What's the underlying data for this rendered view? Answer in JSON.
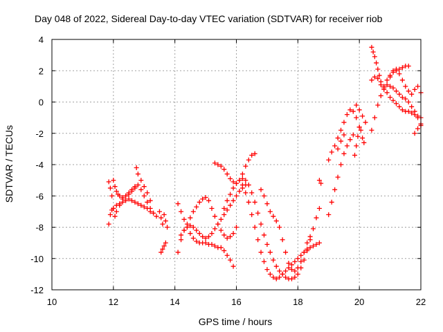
{
  "chart_data": {
    "type": "scatter",
    "title": "Day 048 of 2022, Sidereal Day-to-day VTEC variation (SDTVAR) for receiver riob",
    "xlabel": "GPS time / hours",
    "ylabel": "SDTVAR / TECUs",
    "xlim": [
      10,
      22
    ],
    "ylim": [
      -12,
      4
    ],
    "x_ticks": [
      "10",
      "12",
      "14",
      "16",
      "18",
      "20",
      "22"
    ],
    "y_ticks": [
      "4",
      "2",
      "0",
      "-2",
      "-4",
      "-6",
      "-8",
      "-10",
      "-12"
    ],
    "grid": true,
    "marker": "plus",
    "color": "#ff0000",
    "series": [
      {
        "x": [
          11.85,
          11.9,
          11.95,
          12.0,
          12.1,
          12.2,
          12.3,
          12.4,
          12.5,
          12.6,
          12.7,
          12.8,
          12.9,
          13.0,
          13.1,
          13.2,
          13.3,
          13.4
        ],
        "y": [
          -7.8,
          -7.2,
          -6.9,
          -6.8,
          -6.6,
          -6.5,
          -6.4,
          -6.3,
          -6.2,
          -6.3,
          -6.4,
          -6.5,
          -6.6,
          -6.7,
          -6.8,
          -7.0,
          -7.1,
          -7.3
        ]
      },
      {
        "x": [
          11.85,
          11.9,
          11.95,
          12.0,
          12.05,
          12.1,
          12.2,
          12.3,
          12.4,
          12.5,
          12.6,
          12.7,
          12.8,
          12.9,
          13.0,
          13.1,
          13.2,
          13.3
        ],
        "y": [
          -5.1,
          -5.5,
          -6.0,
          -6.8,
          -7.3,
          -7.0,
          -6.6,
          -6.2,
          -6.0,
          -5.8,
          -5.6,
          -5.4,
          -5.3,
          -5.6,
          -6.0,
          -6.4,
          -6.8,
          -7.1
        ]
      },
      {
        "x": [
          12.0,
          12.05,
          12.1,
          12.15,
          12.2,
          12.3,
          12.4,
          12.5,
          12.6,
          12.7,
          12.75,
          12.8,
          12.9,
          13.0,
          13.1,
          13.2
        ],
        "y": [
          -5.0,
          -5.4,
          -5.7,
          -5.9,
          -6.0,
          -6.1,
          -6.0,
          -5.9,
          -5.7,
          -5.5,
          -4.2,
          -4.6,
          -5.0,
          -5.4,
          -5.8,
          -6.3
        ]
      },
      {
        "x": [
          13.5,
          13.55,
          13.6,
          13.65,
          13.7,
          13.75
        ],
        "y": [
          -7.0,
          -7.4,
          -7.8,
          -7.2,
          -7.6,
          -8.0
        ]
      },
      {
        "x": [
          13.55,
          13.6,
          13.65,
          13.7
        ],
        "y": [
          -9.6,
          -9.4,
          -9.2,
          -9.0
        ]
      },
      {
        "x": [
          14.1,
          14.2,
          14.3,
          14.4,
          14.5,
          14.6,
          14.7,
          14.8,
          14.9,
          15.0,
          15.1,
          15.2,
          15.3,
          15.4,
          15.5,
          15.6,
          15.7,
          15.8,
          15.9
        ],
        "y": [
          -6.5,
          -7.0,
          -7.5,
          -8.0,
          -8.4,
          -8.7,
          -8.9,
          -9.0,
          -9.0,
          -9.0,
          -9.1,
          -9.1,
          -9.2,
          -9.3,
          -9.3,
          -9.5,
          -9.8,
          -10.1,
          -10.5
        ]
      },
      {
        "x": [
          14.1,
          14.2,
          14.3,
          14.4,
          14.5,
          14.6,
          14.7,
          14.8,
          14.9,
          15.0,
          15.1,
          15.2,
          15.3,
          15.4,
          15.5,
          15.6,
          15.7,
          15.8,
          15.9,
          16.0
        ],
        "y": [
          -9.6,
          -8.8,
          -8.2,
          -7.8,
          -7.4,
          -7.0,
          -6.7,
          -6.4,
          -6.2,
          -6.1,
          -6.3,
          -6.8,
          -7.3,
          -7.8,
          -8.2,
          -8.5,
          -8.7,
          -8.6,
          -8.4,
          -8.0
        ]
      },
      {
        "x": [
          14.2,
          14.3,
          14.4,
          14.5,
          14.6,
          14.7,
          14.8,
          14.9,
          15.0,
          15.1,
          15.2,
          15.3,
          15.4,
          15.5,
          15.6,
          15.7,
          15.8,
          15.9,
          16.0,
          16.1,
          16.2,
          16.3
        ],
        "y": [
          -8.5,
          -8.2,
          -8.0,
          -7.9,
          -8.0,
          -8.2,
          -8.4,
          -8.6,
          -8.7,
          -8.6,
          -8.4,
          -8.1,
          -7.8,
          -7.5,
          -7.2,
          -6.9,
          -6.6,
          -6.3,
          -6.0,
          -5.7,
          -5.5,
          -5.3
        ]
      },
      {
        "x": [
          15.3,
          15.4,
          15.5,
          15.6,
          15.7,
          15.8,
          15.9,
          16.0,
          16.1,
          16.2,
          16.3,
          16.4,
          16.5,
          16.6
        ],
        "y": [
          -3.9,
          -4.0,
          -4.1,
          -4.3,
          -4.6,
          -4.9,
          -5.1,
          -5.2,
          -5.0,
          -4.6,
          -4.1,
          -3.7,
          -3.4,
          -3.3
        ]
      },
      {
        "x": [
          15.6,
          15.7,
          15.8,
          15.9,
          16.0,
          16.1,
          16.2,
          16.3,
          16.4,
          16.5,
          16.6,
          16.7,
          16.8,
          16.9,
          17.0,
          17.1,
          17.2,
          17.3,
          17.4,
          17.5,
          17.6,
          17.7,
          17.8,
          17.9,
          18.0,
          18.1,
          18.2,
          18.3,
          18.4,
          18.5,
          18.6,
          18.7
        ],
        "y": [
          -6.8,
          -6.3,
          -5.9,
          -5.5,
          -5.2,
          -5.0,
          -4.9,
          -5.0,
          -5.3,
          -5.8,
          -6.4,
          -7.1,
          -7.8,
          -8.5,
          -9.1,
          -9.6,
          -10.1,
          -10.5,
          -10.8,
          -11.0,
          -11.2,
          -11.3,
          -11.3,
          -11.2,
          -11.0,
          -10.6,
          -10.1,
          -9.5,
          -8.8,
          -8.1,
          -7.4,
          -6.8
        ]
      },
      {
        "x": [
          16.2,
          16.3,
          16.4,
          16.5,
          16.6,
          16.7,
          16.8,
          16.9,
          17.0,
          17.1,
          17.2,
          17.3,
          17.4,
          17.5,
          17.6,
          17.7,
          17.8,
          17.9,
          18.0,
          18.1,
          18.2,
          18.3,
          18.4,
          18.5,
          18.6,
          18.7
        ],
        "y": [
          -5.3,
          -5.8,
          -6.4,
          -7.2,
          -8.0,
          -8.8,
          -9.6,
          -10.2,
          -10.7,
          -11.0,
          -11.2,
          -11.3,
          -11.2,
          -11.0,
          -10.8,
          -10.6,
          -10.4,
          -10.2,
          -10.0,
          -9.8,
          -9.6,
          -9.4,
          -9.3,
          -9.2,
          -9.1,
          -9.0
        ]
      },
      {
        "x": [
          16.8,
          16.9,
          17.0,
          17.1,
          17.2,
          17.3,
          17.4,
          17.5,
          17.6,
          17.7,
          17.8,
          17.9,
          18.0,
          18.1,
          18.2,
          18.3,
          18.4
        ],
        "y": [
          -5.6,
          -6.0,
          -6.5,
          -7.0,
          -7.3,
          -7.6,
          -8.0,
          -8.8,
          -9.6,
          -10.3,
          -10.7,
          -10.8,
          -10.6,
          -10.2,
          -9.6,
          -9.0,
          -8.6
        ]
      },
      {
        "x": [
          18.7,
          18.75
        ],
        "y": [
          -5.0,
          -5.2
        ]
      },
      {
        "x": [
          19.0,
          19.1,
          19.2,
          19.3,
          19.4,
          19.5,
          19.6,
          19.7,
          19.8,
          19.9,
          20.0
        ],
        "y": [
          -3.7,
          -3.2,
          -2.8,
          -2.3,
          -1.8,
          -1.3,
          -0.8,
          -0.5,
          -0.6,
          -1.0,
          -1.6
        ]
      },
      {
        "x": [
          19.0,
          19.1,
          19.2,
          19.3,
          19.4,
          19.5,
          19.6,
          19.7,
          19.8
        ],
        "y": [
          -7.2,
          -6.4,
          -5.6,
          -4.8,
          -4.0,
          -3.3,
          -2.8,
          -2.4,
          -2.1
        ]
      },
      {
        "x": [
          19.3,
          19.4,
          19.5
        ],
        "y": [
          -3.0,
          -2.5,
          -2.1
        ]
      },
      {
        "x": [
          19.85,
          19.9,
          19.95,
          20.0,
          20.05,
          20.1,
          20.15
        ],
        "y": [
          -3.4,
          -2.8,
          -2.2,
          -1.6,
          -1.8,
          -2.3,
          -2.6
        ]
      },
      {
        "x": [
          19.9,
          20.0,
          20.1,
          20.2
        ],
        "y": [
          -0.2,
          -0.5,
          -0.9,
          -1.3
        ]
      },
      {
        "x": [
          20.4,
          20.45,
          20.5,
          20.55,
          20.6,
          20.65,
          20.7,
          20.8,
          20.9,
          21.0,
          21.1,
          21.2,
          21.3,
          21.4,
          21.5,
          21.6,
          21.7,
          21.8,
          21.9,
          22.0
        ],
        "y": [
          3.5,
          3.2,
          2.9,
          2.5,
          2.1,
          1.7,
          1.3,
          0.9,
          0.6,
          0.3,
          0.1,
          -0.1,
          -0.3,
          -0.5,
          -0.6,
          -0.6,
          -0.7,
          -0.8,
          -0.9,
          -1.0
        ]
      },
      {
        "x": [
          20.4,
          20.5,
          20.6,
          20.7,
          20.8,
          20.9,
          21.0,
          21.1,
          21.2,
          21.3,
          21.4,
          21.5,
          21.6,
          21.7,
          21.8,
          21.9,
          22.0
        ],
        "y": [
          1.4,
          1.6,
          1.5,
          1.1,
          0.8,
          1.1,
          1.6,
          2.0,
          2.1,
          1.8,
          1.4,
          1.0,
          0.7,
          0.5,
          0.8,
          1.0,
          0.6
        ]
      },
      {
        "x": [
          20.4,
          20.5,
          20.6,
          20.7,
          20.8,
          20.9,
          21.0,
          21.1,
          21.2,
          21.3,
          21.4,
          21.5,
          21.6
        ],
        "y": [
          -1.8,
          -1.0,
          -0.2,
          0.4,
          1.0,
          1.4,
          1.7,
          1.9,
          2.0,
          2.1,
          2.2,
          2.3,
          2.3
        ]
      },
      {
        "x": [
          21.0,
          21.1,
          21.2,
          21.3,
          21.4,
          21.5,
          21.6,
          21.7,
          21.8,
          21.9,
          22.0
        ],
        "y": [
          1.0,
          0.9,
          0.7,
          0.5,
          0.3,
          0.2,
          0.0,
          -0.3,
          -0.6,
          -1.0,
          -1.4
        ]
      },
      {
        "x": [
          21.8,
          21.9,
          22.0
        ],
        "y": [
          -2.0,
          -1.7,
          -1.5
        ]
      }
    ]
  }
}
